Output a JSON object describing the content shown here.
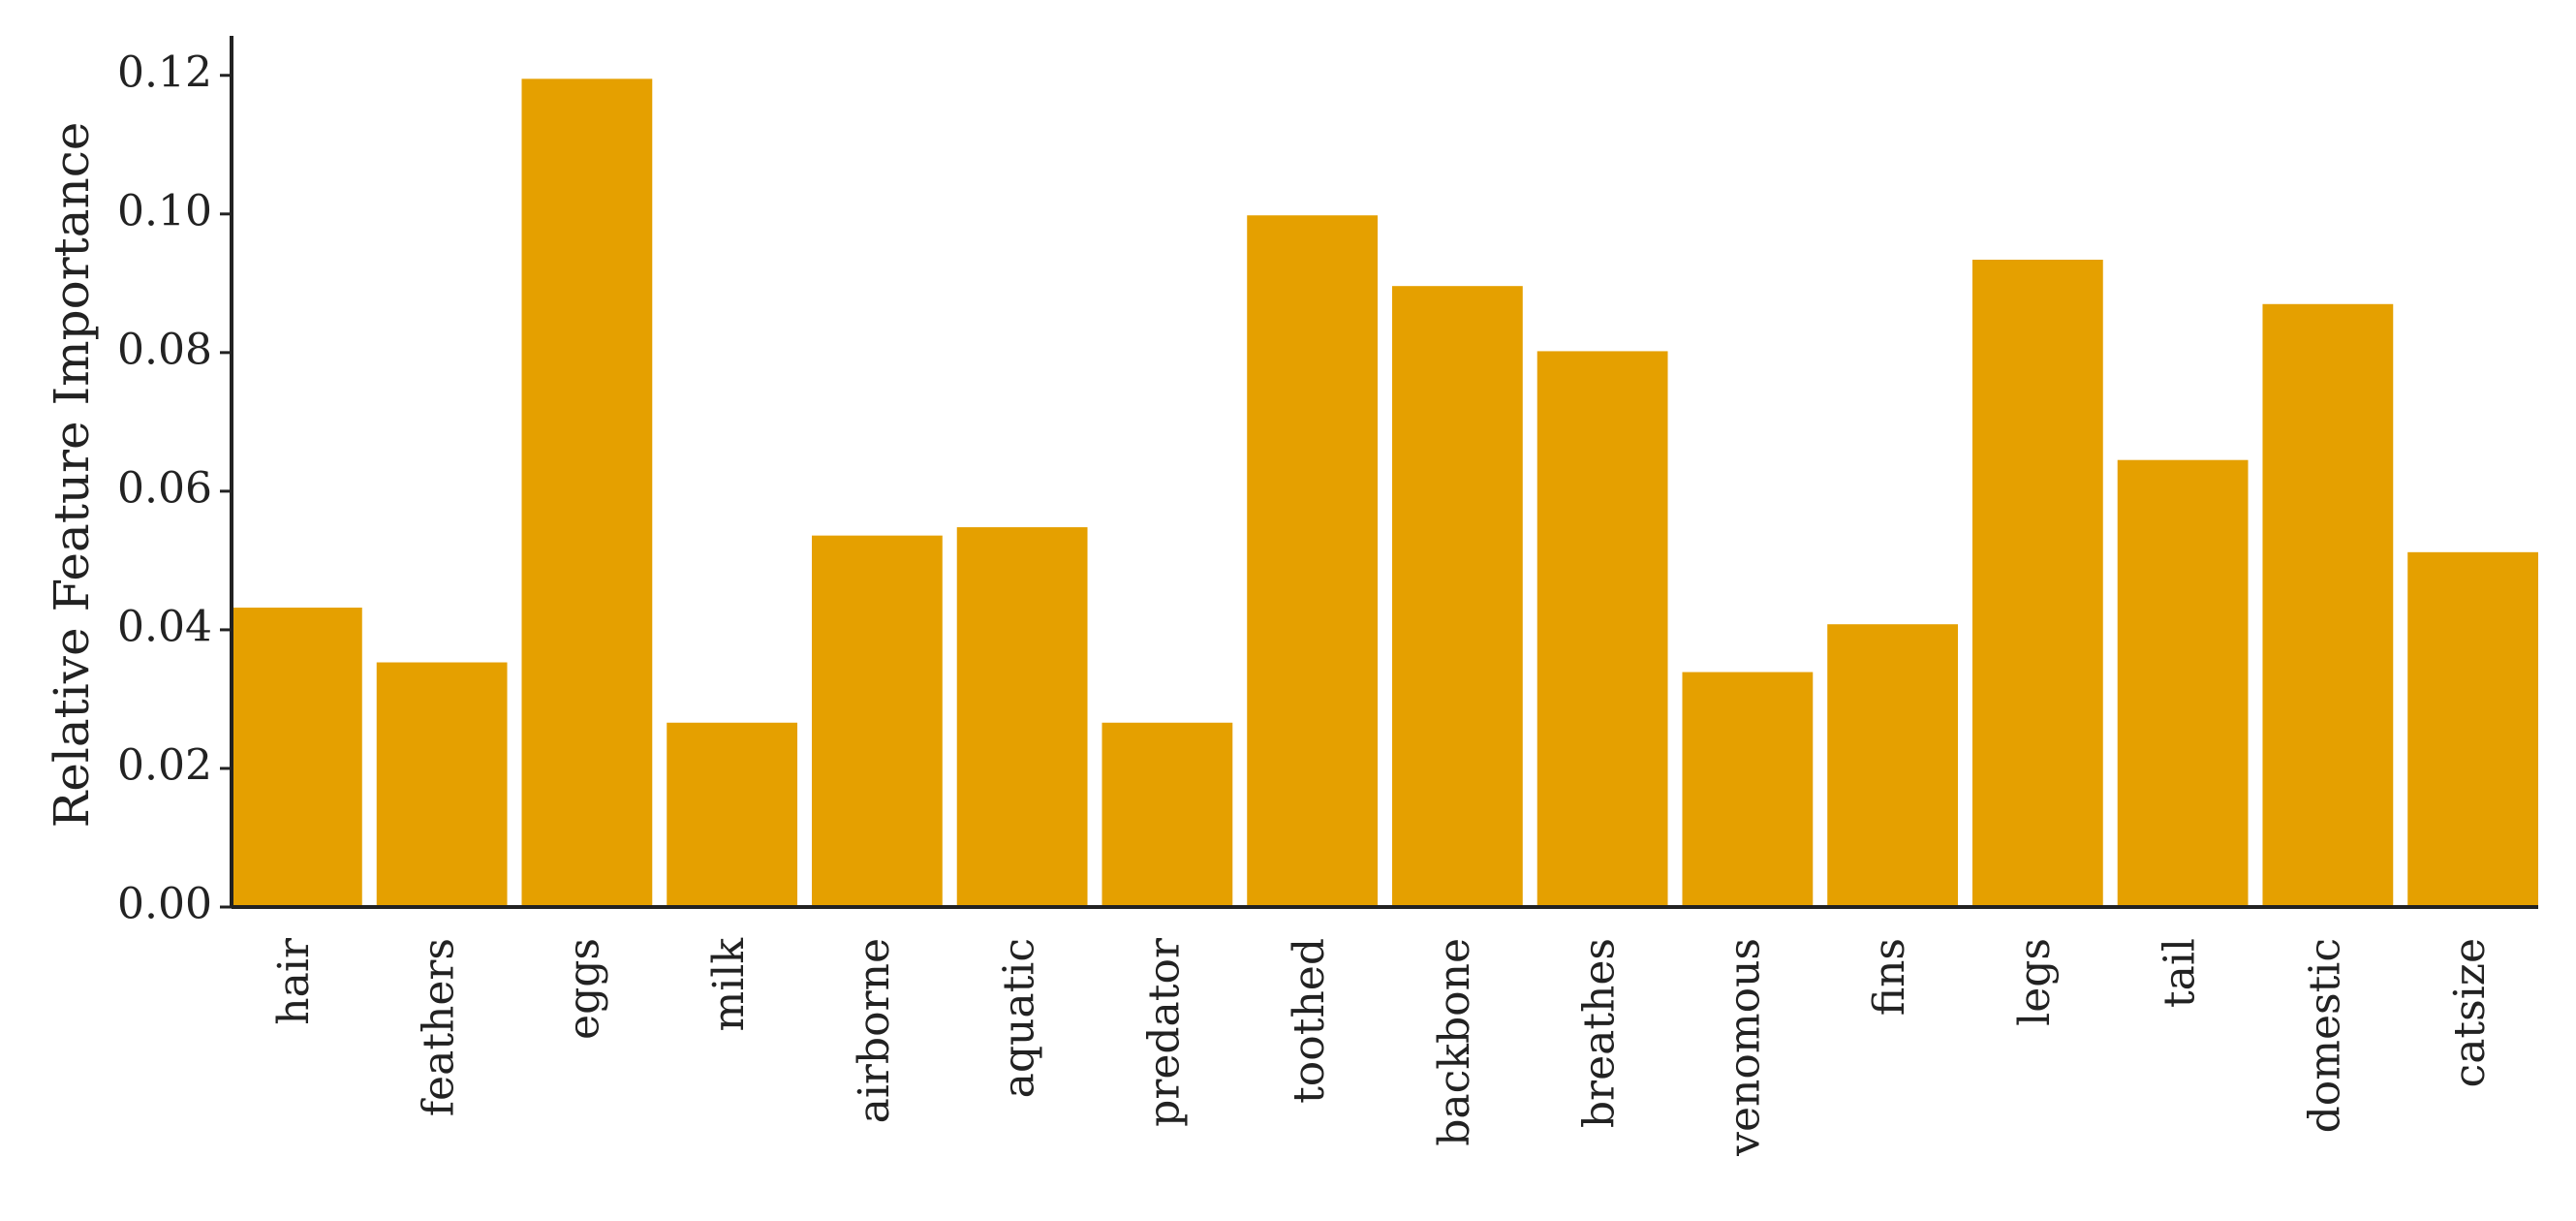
{
  "chart_data": {
    "type": "bar",
    "y_label": "Relative Feature Importance",
    "categories": [
      "hair",
      "feathers",
      "eggs",
      "milk",
      "airborne",
      "aquatic",
      "predator",
      "toothed",
      "backbone",
      "breathes",
      "venomous",
      "fins",
      "legs",
      "tail",
      "domestic",
      "catsize"
    ],
    "values": [
      0.0432,
      0.0353,
      0.1195,
      0.0266,
      0.0536,
      0.0548,
      0.0266,
      0.0998,
      0.0896,
      0.0802,
      0.0339,
      0.0408,
      0.0934,
      0.0645,
      0.087,
      0.0512
    ],
    "color": "#e5a000",
    "ylim": [
      0,
      0.1257
    ],
    "yticks": [
      {
        "value": 0,
        "label": "0.00"
      },
      0.02,
      0.04,
      0.06,
      0.08,
      {
        "value": 0.1,
        "label": "0.10"
      },
      0.12
    ],
    "grid": false
  }
}
